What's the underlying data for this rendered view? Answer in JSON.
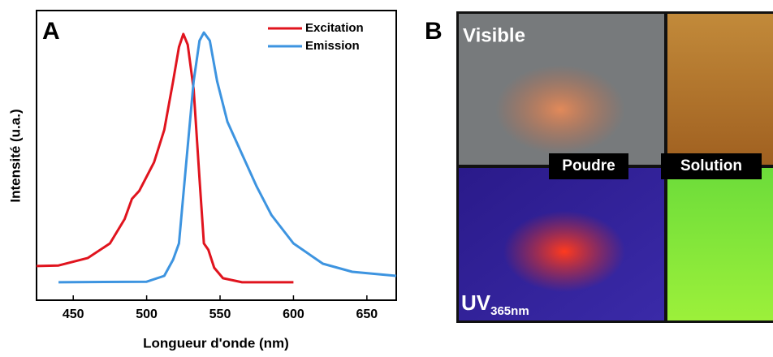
{
  "chart_data": {
    "type": "line",
    "panel_label": "A",
    "xlabel": "Longueur d'onde (nm)",
    "ylabel": "Intensité (u.a.)",
    "xlim": [
      425,
      670
    ],
    "xticks": [
      450,
      500,
      550,
      600,
      650
    ],
    "ylim": [
      0,
      1
    ],
    "legend": "upper right",
    "series": [
      {
        "name": "Excitation",
        "color": "#e0141e",
        "x": [
          425,
          440,
          460,
          475,
          485,
          490,
          495,
          505,
          512,
          518,
          522,
          525,
          528,
          532,
          536,
          539,
          542,
          546,
          552,
          565,
          600
        ],
        "values": [
          0.118,
          0.12,
          0.146,
          0.196,
          0.28,
          0.35,
          0.378,
          0.476,
          0.588,
          0.756,
          0.874,
          0.919,
          0.882,
          0.728,
          0.42,
          0.196,
          0.174,
          0.112,
          0.076,
          0.062,
          0.062
        ]
      },
      {
        "name": "Emission",
        "color": "#3d94e0",
        "x": [
          440,
          500,
          512,
          518,
          522,
          527,
          532,
          536,
          539,
          543,
          548,
          555,
          565,
          575,
          585,
          600,
          620,
          640,
          670
        ],
        "values": [
          0.062,
          0.064,
          0.084,
          0.14,
          0.196,
          0.476,
          0.756,
          0.896,
          0.924,
          0.896,
          0.756,
          0.616,
          0.504,
          0.392,
          0.294,
          0.196,
          0.126,
          0.098,
          0.084
        ]
      }
    ]
  },
  "panel_b": {
    "panel_label": "B",
    "labels": {
      "visible": "Visible",
      "powder": "Poudre",
      "solution": "Solution",
      "uv": "UV",
      "uv_sub": "365nm"
    }
  }
}
